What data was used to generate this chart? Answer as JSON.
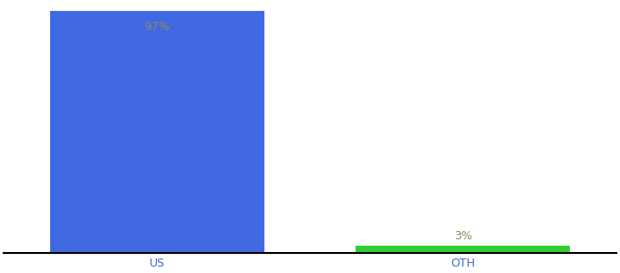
{
  "categories": [
    "US",
    "OTH"
  ],
  "values": [
    97,
    3
  ],
  "bar_colors": [
    "#4169e1",
    "#32cd32"
  ],
  "labels": [
    "97%",
    "3%"
  ],
  "ylim": [
    0,
    100
  ],
  "background_color": "#ffffff",
  "label_color_inside": "#888866",
  "label_color_outside": "#888866",
  "bar_width": 0.7,
  "label_fontsize": 9,
  "tick_fontsize": 9,
  "tick_color": "#4466cc"
}
